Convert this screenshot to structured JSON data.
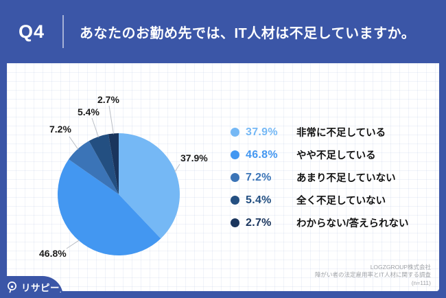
{
  "header": {
    "question_number": "Q4",
    "question_text": "あなたのお勤め先では、IT人材は不足していますか。"
  },
  "chart_data": {
    "type": "pie",
    "title": "あなたのお勤め先では、IT人材は不足していますか。",
    "labels": [
      "非常に不足している",
      "やや不足している",
      "あまり不足していない",
      "全く不足していない",
      "わからない/答えられない"
    ],
    "values": [
      37.9,
      46.8,
      7.2,
      5.4,
      2.7
    ],
    "value_labels": [
      "37.9%",
      "46.8%",
      "7.2%",
      "5.4%",
      "2.7%"
    ],
    "colors": [
      "#75B8F5",
      "#4397F1",
      "#3B74B7",
      "#234F81",
      "#1A355D"
    ],
    "start_angle_deg": 0,
    "direction": "clockwise",
    "legend_position": "right",
    "sample_size_note": "(n=111)"
  },
  "footer": {
    "company": "LOGZGROUP株式会社",
    "survey_title": "障がい者の法定雇用率とIT人材に関する調査",
    "sample": "(n=111)"
  },
  "logo": {
    "text": "リサピー",
    "tm": "."
  },
  "colors": {
    "frame_blue": "#3B56A7",
    "leader_line": "#b9bdc4"
  }
}
